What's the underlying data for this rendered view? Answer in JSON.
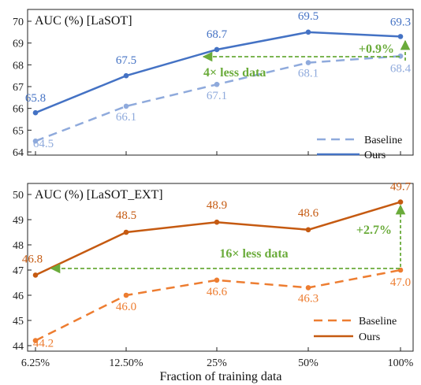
{
  "colors": {
    "ours_top": "#4472c4",
    "baseline_top": "#8faadc",
    "ours_bottom": "#c55a11",
    "baseline_bottom": "#ed7d31",
    "annotation": "#6aab3a"
  },
  "chart_data": [
    {
      "type": "line",
      "title": "AUC (%) [LaSOT]",
      "categories": [
        "6.25%",
        "12.50%",
        "25%",
        "50%",
        "100%"
      ],
      "ylim": [
        64,
        70
      ],
      "yticks": [
        "64",
        "65",
        "66",
        "67",
        "68",
        "69",
        "70"
      ],
      "legend_position": "bottom-right",
      "series": [
        {
          "name": "Baseline",
          "style": "dashed",
          "values": [
            64.5,
            66.1,
            67.1,
            68.1,
            68.4
          ],
          "labels": [
            "64.5",
            "66.1",
            "67.1",
            "68.1",
            "68.4"
          ]
        },
        {
          "name": "Ours",
          "style": "solid",
          "values": [
            65.8,
            67.5,
            68.7,
            69.5,
            69.3
          ],
          "labels": [
            "65.8",
            "67.5",
            "68.7",
            "69.5",
            "69.3"
          ]
        }
      ],
      "annotations": {
        "gain": "+0.9%",
        "less_data": "4× less data"
      }
    },
    {
      "type": "line",
      "title": "AUC (%) [LaSOT_EXT]",
      "categories": [
        "6.25%",
        "12.50%",
        "25%",
        "50%",
        "100%"
      ],
      "xlabel": "Fraction of training data",
      "ylim": [
        44,
        50
      ],
      "yticks": [
        "44",
        "45",
        "46",
        "47",
        "48",
        "49",
        "50"
      ],
      "legend_position": "bottom-right",
      "series": [
        {
          "name": "Baseline",
          "style": "dashed",
          "values": [
            44.2,
            46.0,
            46.6,
            46.3,
            47.0
          ],
          "labels": [
            "44.2",
            "46.0",
            "46.6",
            "46.3",
            "47.0"
          ]
        },
        {
          "name": "Ours",
          "style": "solid",
          "values": [
            46.8,
            48.5,
            48.9,
            48.6,
            49.7
          ],
          "labels": [
            "46.8",
            "48.5",
            "48.9",
            "48.6",
            "49.7"
          ]
        }
      ],
      "annotations": {
        "gain": "+2.7%",
        "less_data": "16× less data"
      }
    }
  ]
}
